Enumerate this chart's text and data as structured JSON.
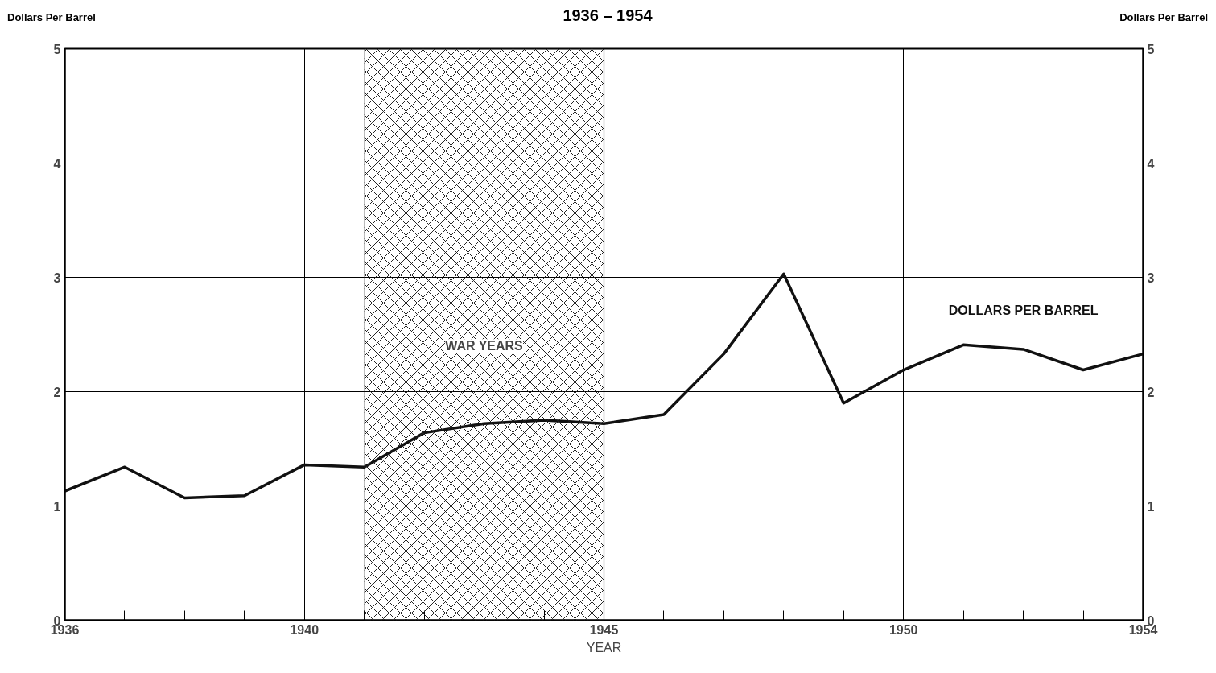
{
  "chart_data": {
    "type": "line",
    "title": "1936 – 1954",
    "xlabel": "YEAR",
    "ylabel": "Dollars Per Barrel",
    "y2label": "Dollars Per Barrel",
    "x": [
      1936,
      1937,
      1938,
      1939,
      1940,
      1941,
      1942,
      1943,
      1944,
      1945,
      1946,
      1947,
      1948,
      1949,
      1950,
      1951,
      1952,
      1953,
      1954
    ],
    "series": [
      {
        "name": "DOLLARS PER BARREL",
        "color": "#111111",
        "values": [
          1.13,
          1.34,
          1.07,
          1.09,
          1.36,
          1.34,
          1.64,
          1.72,
          1.75,
          1.72,
          1.8,
          2.33,
          3.03,
          1.9,
          2.19,
          2.41,
          2.37,
          2.19,
          2.33
        ]
      }
    ],
    "xlim": [
      1936,
      1954
    ],
    "xticks": [
      1936,
      {
        "value": 1937,
        "label": null
      },
      {
        "value": 1938,
        "label": null
      },
      {
        "value": 1939,
        "label": null
      },
      1940,
      {
        "value": 1941,
        "label": null
      },
      {
        "value": 1942,
        "label": null
      },
      {
        "value": 1943,
        "label": null
      },
      {
        "value": 1944,
        "label": null
      },
      1945,
      {
        "value": 1946,
        "label": null
      },
      {
        "value": 1947,
        "label": null
      },
      {
        "value": 1948,
        "label": null
      },
      {
        "value": 1949,
        "label": null
      },
      1950,
      {
        "value": 1951,
        "label": null
      },
      {
        "value": 1952,
        "label": null
      },
      {
        "value": 1953,
        "label": null
      },
      1954
    ],
    "ylim": [
      0,
      5
    ],
    "yticks": [
      0,
      1,
      2,
      3,
      4,
      5
    ],
    "y2lim": [
      0,
      5
    ],
    "y2ticks": [
      0,
      1,
      2,
      3,
      4,
      5
    ],
    "bands": [
      {
        "axis": "x",
        "from": 1941,
        "to": 1945,
        "label": "WAR YEARS",
        "color": "#222222"
      }
    ],
    "grid": true,
    "line_style": "solid",
    "marker": "none"
  }
}
